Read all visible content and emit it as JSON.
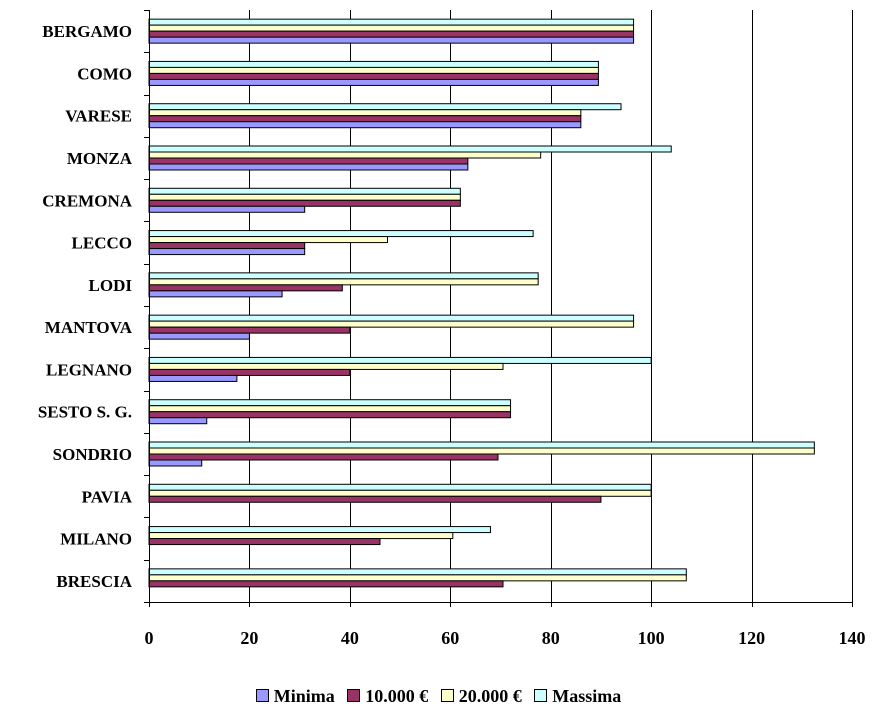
{
  "chart_data": {
    "type": "bar",
    "orientation": "horizontal",
    "categories": [
      "BRESCIA",
      "MILANO",
      "PAVIA",
      "SONDRIO",
      "SESTO S. G.",
      "LEGNANO",
      "MANTOVA",
      "LODI",
      "LECCO",
      "CREMONA",
      "MONZA",
      "VARESE",
      "COMO",
      "BERGAMO"
    ],
    "series": [
      {
        "name": "Minima",
        "color": "#9999FF",
        "values": [
          0,
          0,
          0,
          10.5,
          11.5,
          17.5,
          20,
          26.5,
          31,
          31,
          63.5,
          86,
          89.5,
          96.5
        ]
      },
      {
        "name": "10.000 €",
        "color": "#993366",
        "values": [
          70.5,
          46,
          90,
          69.5,
          72,
          40,
          40,
          38.5,
          31,
          62,
          63.5,
          86,
          89.5,
          96.5
        ]
      },
      {
        "name": "20.000 €",
        "color": "#FFFFCC",
        "values": [
          107,
          60.5,
          100,
          132.5,
          72,
          70.5,
          96.5,
          77.5,
          47.5,
          62,
          78,
          86,
          89.5,
          96.5
        ]
      },
      {
        "name": "Massima",
        "color": "#CCFFFF",
        "values": [
          107,
          68,
          100,
          132.5,
          72,
          100,
          96.5,
          77.5,
          76.5,
          62,
          104,
          94,
          89.5,
          96.5
        ]
      }
    ],
    "xlim": [
      0,
      140
    ],
    "xticks": [
      "0",
      "20",
      "40",
      "60",
      "80",
      "100",
      "120",
      "140"
    ],
    "grid": true,
    "legend_position": "bottom"
  }
}
